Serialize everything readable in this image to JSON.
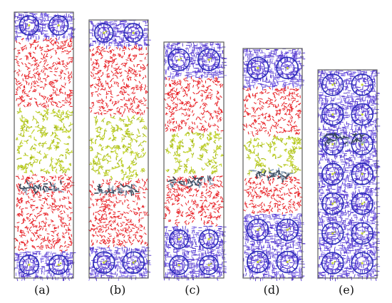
{
  "colors": {
    "frame": "#5a5a5a",
    "framework": "#5a3fd0",
    "framework_dark": "#2b2bb8",
    "framework_light": "#8f7cf0",
    "water": "#e8262b",
    "water_h": "#f4a3a3",
    "solvent": "#c8d83a",
    "solvent_dark": "#9aad1c",
    "organic": "#3a4a5c",
    "organic_light": "#8aa0b8"
  },
  "panels": [
    {
      "label": "(a)",
      "regions": [
        {
          "kind": "framework",
          "from": 0,
          "to": 0.1
        },
        {
          "kind": "water",
          "from": 0.1,
          "to": 0.36
        },
        {
          "kind": "solvent",
          "from": 0.36,
          "to": 0.61
        },
        {
          "kind": "organic",
          "at": 0.66
        },
        {
          "kind": "water",
          "from": 0.61,
          "to": 0.9
        },
        {
          "kind": "framework",
          "from": 0.9,
          "to": 1
        }
      ]
    },
    {
      "label": "(b)",
      "regions": [
        {
          "kind": "framework",
          "from": 0,
          "to": 0.1
        },
        {
          "kind": "water",
          "from": 0.1,
          "to": 0.37
        },
        {
          "kind": "solvent",
          "from": 0.37,
          "to": 0.62
        },
        {
          "kind": "organic",
          "at": 0.66
        },
        {
          "kind": "water",
          "from": 0.62,
          "to": 0.88
        },
        {
          "kind": "framework",
          "from": 0.88,
          "to": 1
        }
      ]
    },
    {
      "label": "(c)",
      "regions": [
        {
          "kind": "framework",
          "from": 0,
          "to": 0.15
        },
        {
          "kind": "water",
          "from": 0.15,
          "to": 0.38
        },
        {
          "kind": "solvent",
          "from": 0.38,
          "to": 0.56
        },
        {
          "kind": "organic",
          "at": 0.59
        },
        {
          "kind": "water",
          "from": 0.56,
          "to": 0.78
        },
        {
          "kind": "framework",
          "from": 0.78,
          "to": 1
        }
      ]
    },
    {
      "label": "(d)",
      "regions": [
        {
          "kind": "framework",
          "from": 0,
          "to": 0.17
        },
        {
          "kind": "water",
          "from": 0.17,
          "to": 0.38
        },
        {
          "kind": "solvent",
          "from": 0.38,
          "to": 0.55
        },
        {
          "kind": "organic",
          "at": 0.55
        },
        {
          "kind": "water",
          "from": 0.55,
          "to": 0.72
        },
        {
          "kind": "framework",
          "from": 0.72,
          "to": 1
        }
      ]
    },
    {
      "label": "(e)",
      "regions": [
        {
          "kind": "framework",
          "from": 0,
          "to": 1
        },
        {
          "kind": "organic",
          "at": 0.33
        }
      ]
    }
  ]
}
